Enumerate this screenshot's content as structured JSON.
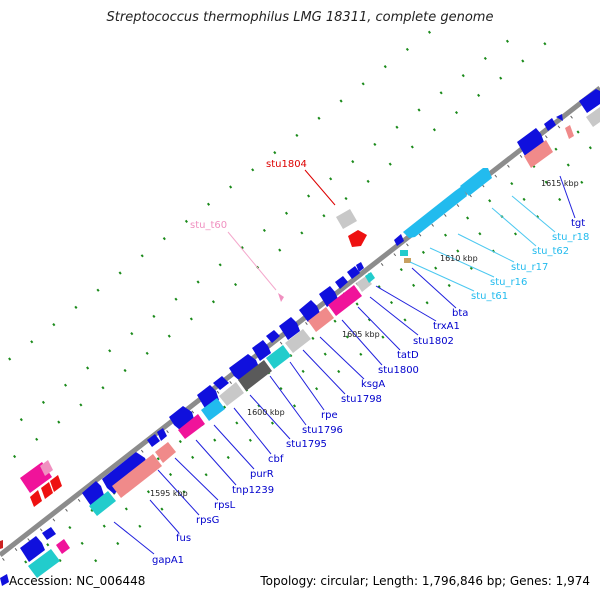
{
  "title": "Streptococcus thermophilus LMG 18311, complete genome",
  "footer": {
    "accession": "Accession: NC_006448",
    "stats": "Topology: circular; Length: 1,796,846 bp; Genes: 1,974"
  },
  "colors": {
    "backbone": "#8c8c8c",
    "gene_forward": "#0000ee",
    "gene_reverse": "#1010cc",
    "pink_gene": "#f0139a",
    "salmon_gene": "#f08a8a",
    "cyan_gene": "#22cccc",
    "sky_gene": "#40c8f0",
    "grey_gene": "#c8c8c8",
    "dark_grey_gene": "#5a5a5a",
    "red_gene": "#ee1111",
    "tick_green": "#1a8a1a",
    "label_blue": "#0000cc",
    "label_cyan": "#22bbee",
    "label_pink": "#f090c0",
    "label_red": "#dd0000"
  },
  "scale_labels": [
    "1595 kbp",
    "1600 kbp",
    "1605 kbp",
    "1610 kbp",
    "1615 kbp"
  ],
  "genes": [
    {
      "name": "stu1804",
      "color": "red"
    },
    {
      "name": "stu_t60",
      "color": "pink"
    },
    {
      "name": "tgt",
      "color": "blue"
    },
    {
      "name": "stu_r18",
      "color": "cyan"
    },
    {
      "name": "stu_t62",
      "color": "cyan"
    },
    {
      "name": "stu_r17",
      "color": "cyan"
    },
    {
      "name": "stu_r16",
      "color": "cyan"
    },
    {
      "name": "stu_t61",
      "color": "cyan"
    },
    {
      "name": "bta",
      "color": "blue"
    },
    {
      "name": "trxA1",
      "color": "blue"
    },
    {
      "name": "stu1802",
      "color": "blue"
    },
    {
      "name": "tatD",
      "color": "blue"
    },
    {
      "name": "stu1800",
      "color": "blue"
    },
    {
      "name": "ksgA",
      "color": "blue"
    },
    {
      "name": "stu1798",
      "color": "blue"
    },
    {
      "name": "rpe",
      "color": "blue"
    },
    {
      "name": "stu1796",
      "color": "blue"
    },
    {
      "name": "stu1795",
      "color": "blue"
    },
    {
      "name": "cbf",
      "color": "blue"
    },
    {
      "name": "purR",
      "color": "blue"
    },
    {
      "name": "tnp1239",
      "color": "blue"
    },
    {
      "name": "rpsL",
      "color": "blue"
    },
    {
      "name": "rpsG",
      "color": "blue"
    },
    {
      "name": "fus",
      "color": "blue"
    },
    {
      "name": "gapA1",
      "color": "blue"
    }
  ]
}
